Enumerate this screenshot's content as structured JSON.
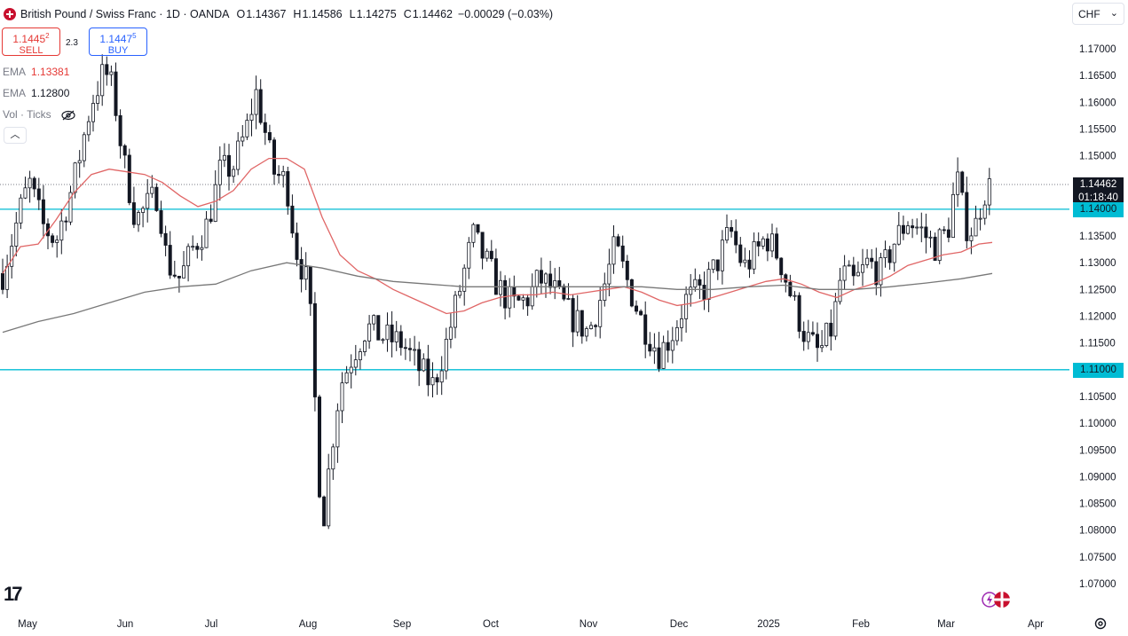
{
  "header": {
    "title": "British Pound / Swiss Franc · 1D · OANDA",
    "open_label": "O",
    "open": "1.14367",
    "high_label": "H",
    "high": "1.14586",
    "low_label": "L",
    "low": "1.14275",
    "close_label": "C",
    "close": "1.14462",
    "change": "−0.00029 (−0.03%)"
  },
  "trade": {
    "sell_price_main": "1.1445",
    "sell_price_sup": "2",
    "sell_label": "SELL",
    "spread": "2.3",
    "buy_price_main": "1.1447",
    "buy_price_sup": "5",
    "buy_label": "BUY"
  },
  "indicators": [
    {
      "name": "EMA",
      "value": "1.13381",
      "color": "#e53935"
    },
    {
      "name": "EMA",
      "value": "1.12800",
      "color": "#131722"
    },
    {
      "name": "Vol · Ticks",
      "value": "",
      "color": "#787b86"
    }
  ],
  "currency": "CHF",
  "tags": {
    "last_price": "1.14462",
    "countdown": "01:18:40",
    "level_upper": "1.14000",
    "level_lower": "1.11000"
  },
  "colors": {
    "up": "#131722",
    "down": "#131722",
    "ema_fast": "#e06666",
    "ema_slow": "#787878",
    "level_line": "#00bcd4",
    "grid": "#ffffff",
    "axis_text": "#787b86"
  },
  "chart_data": {
    "type": "candlestick",
    "title": "British Pound / Swiss Franc · 1D · OANDA",
    "ylim": [
      1.067,
      1.1745
    ],
    "y_ticks": [
      1.07,
      1.075,
      1.08,
      1.085,
      1.09,
      1.095,
      1.1,
      1.105,
      1.11,
      1.115,
      1.12,
      1.125,
      1.13,
      1.135,
      1.14,
      1.145,
      1.15,
      1.155,
      1.16,
      1.165,
      1.17
    ],
    "x_labels": [
      "May",
      "Jun",
      "Jul",
      "Aug",
      "Sep",
      "Oct",
      "Nov",
      "Dec",
      "2025",
      "Feb",
      "Mar",
      "Apr"
    ],
    "horizontal_levels": [
      1.14,
      1.11
    ],
    "last_price": 1.14462,
    "series": [
      {
        "name": "EMA",
        "values": [
          [
            0,
            1.128
          ],
          [
            20,
            1.133
          ],
          [
            40,
            1.1335
          ],
          [
            60,
            1.138
          ],
          [
            80,
            1.143
          ],
          [
            100,
            1.1465
          ],
          [
            120,
            1.1475
          ],
          [
            140,
            1.147
          ],
          [
            160,
            1.1465
          ],
          [
            180,
            1.145
          ],
          [
            200,
            1.1425
          ],
          [
            220,
            1.1405
          ],
          [
            240,
            1.1415
          ],
          [
            260,
            1.1435
          ],
          [
            280,
            1.1475
          ],
          [
            300,
            1.1495
          ],
          [
            320,
            1.1495
          ],
          [
            340,
            1.1475
          ],
          [
            360,
            1.1385
          ],
          [
            380,
            1.1315
          ],
          [
            400,
            1.1285
          ],
          [
            420,
            1.127
          ],
          [
            440,
            1.125
          ],
          [
            460,
            1.1235
          ],
          [
            480,
            1.122
          ],
          [
            500,
            1.1205
          ],
          [
            520,
            1.121
          ],
          [
            540,
            1.1225
          ],
          [
            560,
            1.1235
          ],
          [
            580,
            1.124
          ],
          [
            600,
            1.124
          ],
          [
            620,
            1.1245
          ],
          [
            640,
            1.124
          ],
          [
            660,
            1.1245
          ],
          [
            680,
            1.125
          ],
          [
            700,
            1.1255
          ],
          [
            720,
            1.1245
          ],
          [
            740,
            1.123
          ],
          [
            760,
            1.122
          ],
          [
            780,
            1.1225
          ],
          [
            800,
            1.1235
          ],
          [
            820,
            1.1245
          ],
          [
            840,
            1.1255
          ],
          [
            860,
            1.1265
          ],
          [
            880,
            1.127
          ],
          [
            900,
            1.126
          ],
          [
            920,
            1.1245
          ],
          [
            940,
            1.1235
          ],
          [
            960,
            1.125
          ],
          [
            980,
            1.126
          ],
          [
            1000,
            1.1275
          ],
          [
            1020,
            1.1295
          ],
          [
            1040,
            1.1305
          ],
          [
            1060,
            1.1315
          ],
          [
            1080,
            1.132
          ],
          [
            1100,
            1.1335
          ],
          [
            1115,
            1.1338
          ]
        ]
      },
      {
        "name": "EMA",
        "values": [
          [
            0,
            1.117
          ],
          [
            40,
            1.119
          ],
          [
            80,
            1.1205
          ],
          [
            120,
            1.1225
          ],
          [
            160,
            1.1245
          ],
          [
            200,
            1.1255
          ],
          [
            240,
            1.126
          ],
          [
            280,
            1.1285
          ],
          [
            320,
            1.13
          ],
          [
            360,
            1.129
          ],
          [
            400,
            1.1275
          ],
          [
            440,
            1.1265
          ],
          [
            480,
            1.126
          ],
          [
            520,
            1.1255
          ],
          [
            560,
            1.1255
          ],
          [
            600,
            1.1255
          ],
          [
            640,
            1.1255
          ],
          [
            680,
            1.1255
          ],
          [
            720,
            1.1255
          ],
          [
            760,
            1.125
          ],
          [
            800,
            1.125
          ],
          [
            840,
            1.1255
          ],
          [
            880,
            1.1258
          ],
          [
            920,
            1.125
          ],
          [
            960,
            1.125
          ],
          [
            1000,
            1.1255
          ],
          [
            1040,
            1.1262
          ],
          [
            1080,
            1.127
          ],
          [
            1115,
            1.128
          ]
        ]
      }
    ]
  }
}
